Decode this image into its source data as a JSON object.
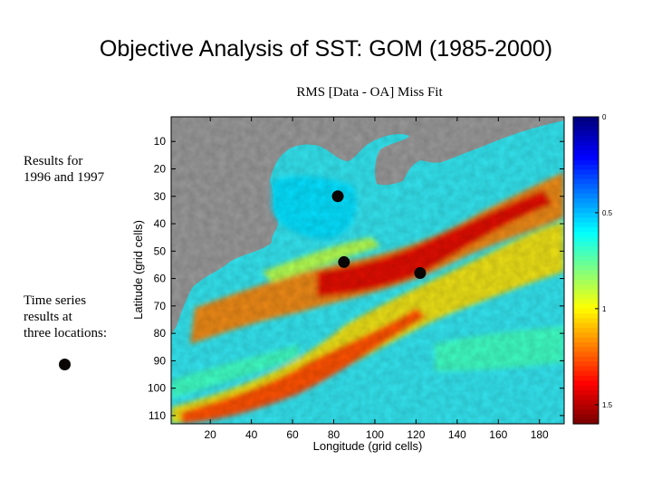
{
  "title": "Objective Analysis of SST: GOM  (1985-2000)",
  "notes": {
    "years": [
      "Results for",
      "1996 and 1997"
    ],
    "locations": [
      "Time series",
      "results at",
      "three locations:"
    ]
  },
  "colors": {
    "land": "#999999",
    "marker": "#0b0606"
  },
  "chart_data": {
    "type": "heatmap",
    "title": "RMS [Data - OA] Miss Fit",
    "xlabel": "Longitude (grid cells)",
    "ylabel": "Latitude (grid cells)",
    "xlim": [
      1,
      192
    ],
    "ylim": [
      113,
      1
    ],
    "xticks": [
      20,
      40,
      60,
      80,
      100,
      120,
      140,
      160,
      180
    ],
    "yticks": [
      10,
      20,
      30,
      40,
      50,
      60,
      70,
      80,
      90,
      100,
      110
    ],
    "colorbar": {
      "colormap": "jet",
      "range": [
        0,
        1.6
      ],
      "ticks": [
        0,
        0.5,
        1,
        1.5
      ],
      "labels": [
        "0",
        "0.5",
        "1",
        "1.5"
      ]
    },
    "locations": [
      {
        "x": 82,
        "y": 30
      },
      {
        "x": 85,
        "y": 54
      },
      {
        "x": 122,
        "y": 58
      }
    ]
  }
}
